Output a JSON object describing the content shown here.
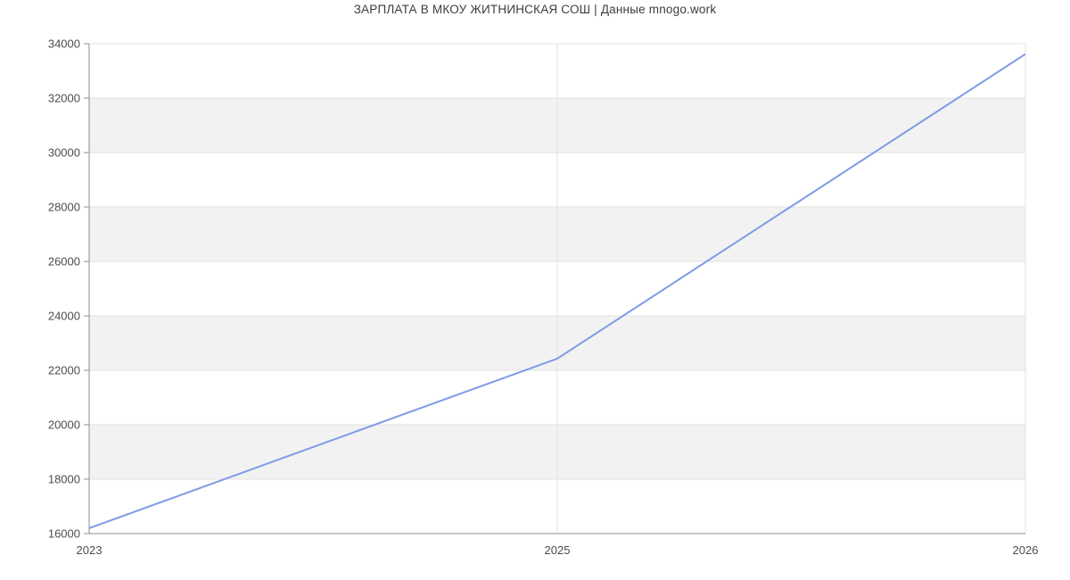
{
  "title": "ЗАРПЛАТА В МКОУ ЖИТНИНСКАЯ СОШ | Данные mnogo.work",
  "chart_data": {
    "type": "line",
    "title": "ЗАРПЛАТА В МКОУ ЖИТНИНСКАЯ СОШ | Данные mnogo.work",
    "x": [
      "2023",
      "2025",
      "2026"
    ],
    "values": [
      16200,
      22430,
      33620
    ],
    "ylim": [
      16000,
      34000
    ],
    "ytick_step": 2000,
    "ytick_labels": [
      "16000",
      "18000",
      "20000",
      "22000",
      "24000",
      "26000",
      "28000",
      "30000",
      "32000",
      "34000"
    ],
    "xlabel": "",
    "ylabel": "",
    "grid": true,
    "legend": "none",
    "plot_bands": "alternating horizontal stripes every 2000 starting gray below 32000",
    "colors": {
      "line": "#7d9ce5",
      "band": "#f2f2f2",
      "gridline": "#e2e2e2",
      "axis": "#8c8c8c",
      "tick_label": "#4d4d4d",
      "title": "#3d3d3d",
      "background": "#ffffff"
    }
  }
}
